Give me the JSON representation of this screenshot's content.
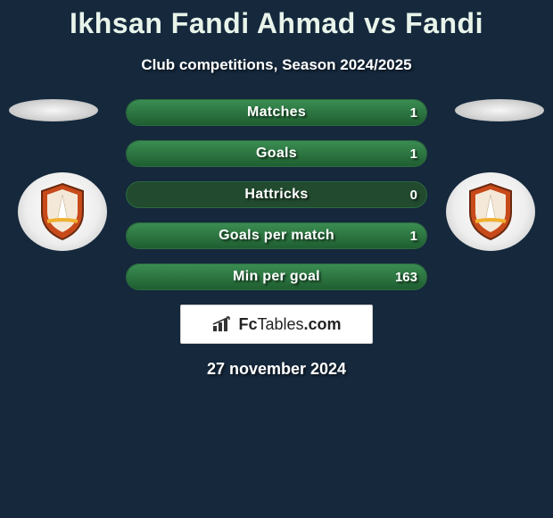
{
  "title": {
    "player1": "Ikhsan Fandi Ahmad",
    "vs": "vs",
    "player2": "Fandi",
    "color": "#e8f4ea",
    "fontsize": 32
  },
  "subtitle": {
    "text": "Club competitions, Season 2024/2025",
    "fontsize": 17
  },
  "background_color": "#15283c",
  "bar_style": {
    "track_color": "#214a2e",
    "fill_gradient_top": "#3a8d52",
    "fill_gradient_bottom": "#1f5e31",
    "border_color": "#2c6a3f",
    "height": 30,
    "radius": 16,
    "label_fontsize": 16,
    "value_fontsize": 15
  },
  "metrics": [
    {
      "label": "Matches",
      "left_display": "",
      "left_value": 0,
      "right_display": "1",
      "right_value": 1,
      "max": 1
    },
    {
      "label": "Goals",
      "left_display": "",
      "left_value": 0,
      "right_display": "1",
      "right_value": 1,
      "max": 1
    },
    {
      "label": "Hattricks",
      "left_display": "",
      "left_value": 0,
      "right_display": "0",
      "right_value": 0,
      "max": 1
    },
    {
      "label": "Goals per match",
      "left_display": "",
      "left_value": 0,
      "right_display": "1",
      "right_value": 1,
      "max": 1
    },
    {
      "label": "Min per goal",
      "left_display": "",
      "left_value": 0,
      "right_display": "163",
      "right_value": 163,
      "max": 163
    }
  ],
  "avatar": {
    "bg_gradient": [
      "#f7f7f7",
      "#d0d0d0",
      "#b0b0b0"
    ]
  },
  "club_badge": {
    "shield_fill": "#c84a1a",
    "shield_stroke": "#6a2a10",
    "inner_fill": "#f4e9d8",
    "accent": "#f0b030"
  },
  "brand": {
    "icon": "bars-icon",
    "name_a": "Fc",
    "name_b": "Tables",
    "suffix": ".com"
  },
  "date": "27 november 2024"
}
